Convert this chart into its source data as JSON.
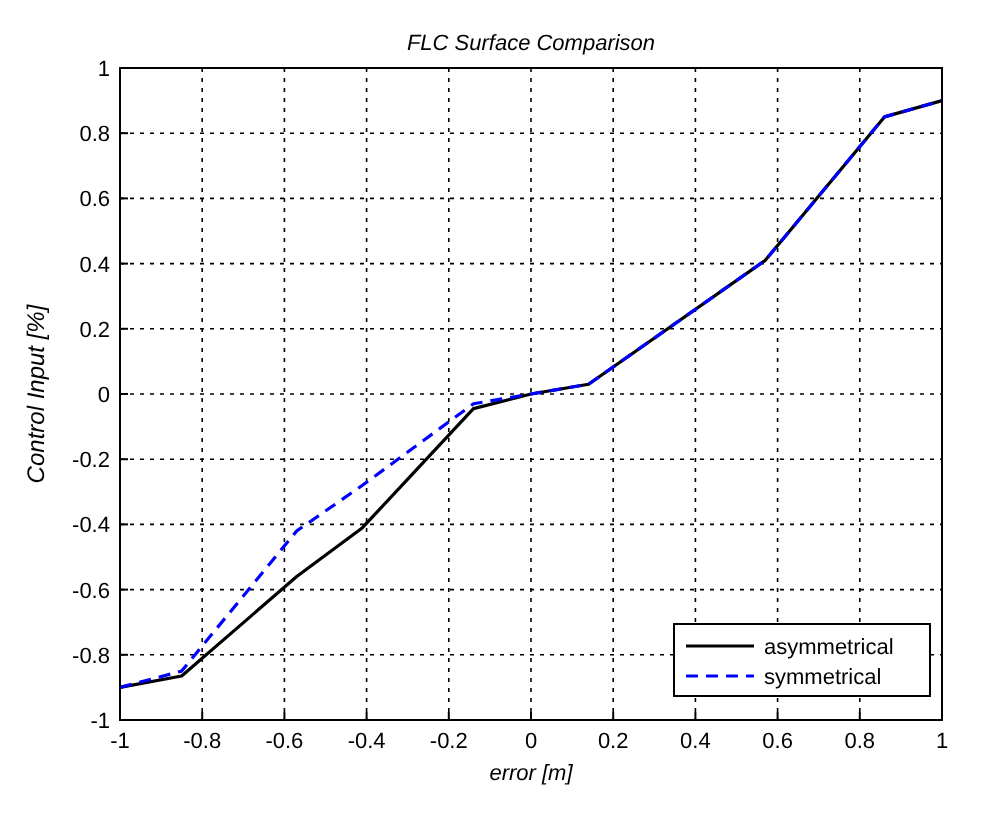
{
  "chart_data": {
    "type": "line",
    "title": "FLC Surface Comparison",
    "xlabel": "error [m]",
    "ylabel": "Control Input [%]",
    "xlim": [
      -1,
      1
    ],
    "xticks": [
      -1,
      -0.8,
      -0.6,
      -0.4,
      -0.2,
      0,
      0.2,
      0.4,
      0.6,
      0.8,
      1
    ],
    "ylim": [
      -1,
      1
    ],
    "yticks": [
      -1,
      -0.8,
      -0.6,
      -0.4,
      -0.2,
      0,
      0.2,
      0.4,
      0.6,
      0.8,
      1
    ],
    "grid": true,
    "legend": "bottom right",
    "series": [
      {
        "name": "asymmetrical",
        "color": "#000000",
        "line_style": "solid",
        "x": [
          -1,
          -0.85,
          -0.57,
          -0.41,
          -0.14,
          0,
          0.14,
          0.57,
          0.86,
          1
        ],
        "values": [
          -0.9,
          -0.865,
          -0.56,
          -0.41,
          -0.045,
          0,
          0.03,
          0.41,
          0.85,
          0.9
        ]
      },
      {
        "name": "symmetrical",
        "color": "#0000ff",
        "line_style": "dashed",
        "x": [
          -1,
          -0.85,
          -0.57,
          -0.41,
          -0.14,
          0,
          0.14,
          0.57,
          0.86,
          1
        ],
        "values": [
          -0.9,
          -0.85,
          -0.42,
          -0.28,
          -0.03,
          0,
          0.03,
          0.41,
          0.85,
          0.9
        ]
      }
    ]
  }
}
